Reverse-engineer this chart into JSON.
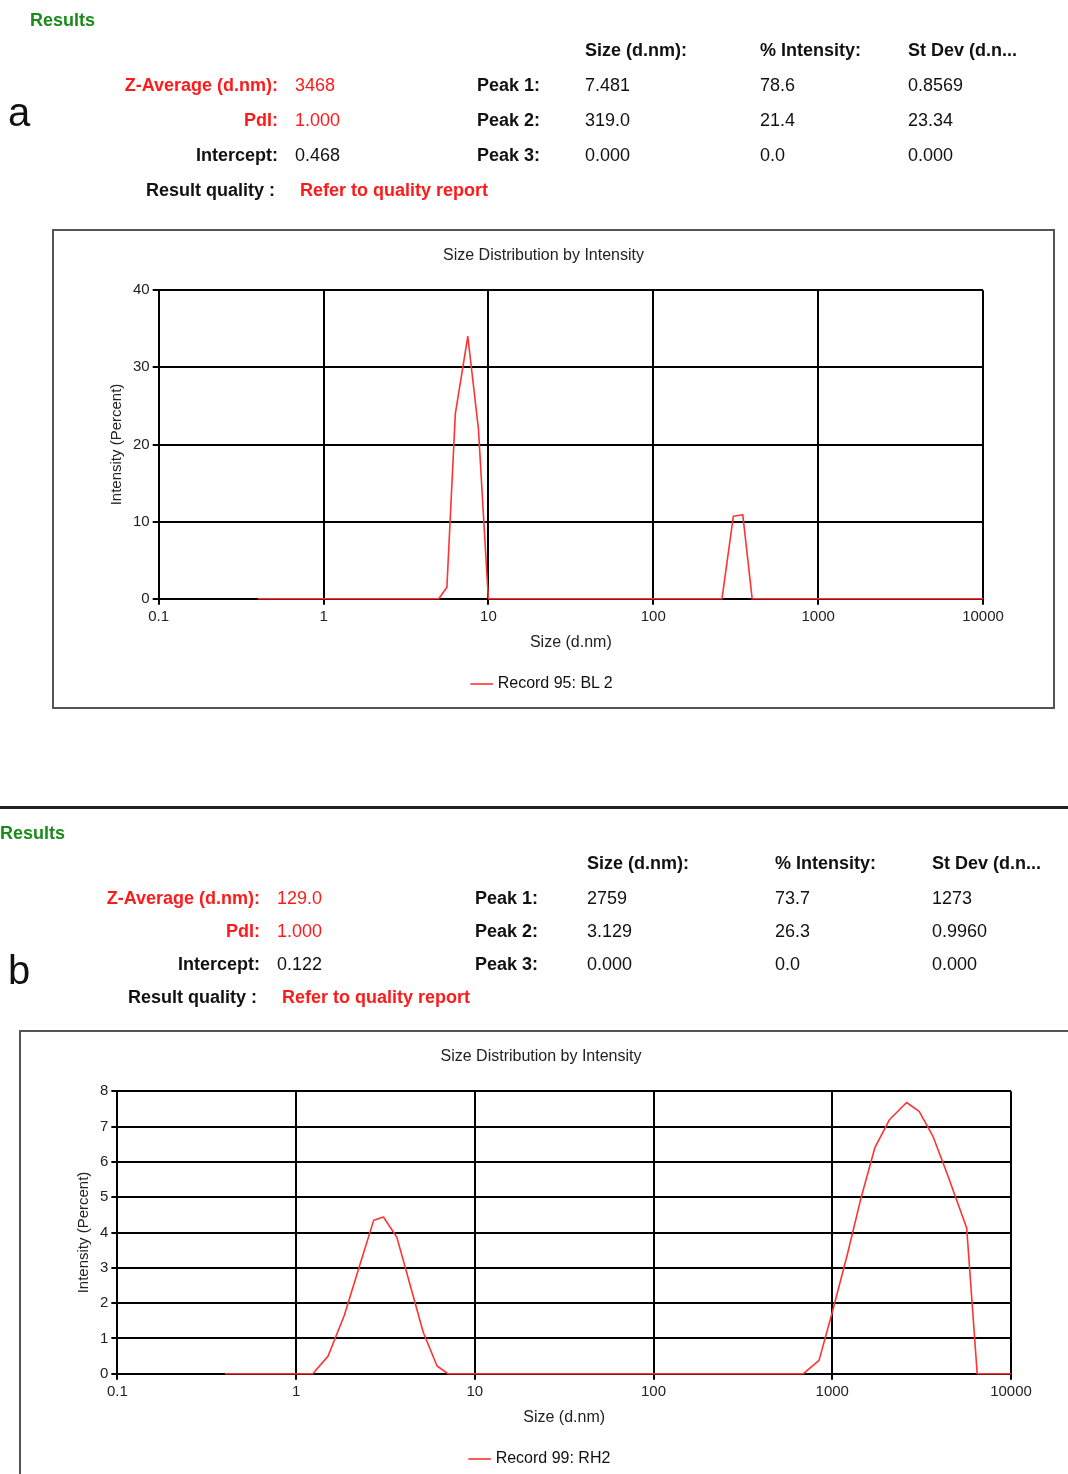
{
  "chart_data": [
    {
      "type": "other",
      "title": "Results",
      "annotations": [
        "a",
        "Size (d.nm):",
        "% Intensity:",
        "St Dev (d.n...",
        "Z-Average (d.nm):",
        "3468",
        "Peak 1:",
        "7.481",
        "78.6",
        "0.8569",
        "PdI:",
        "1.000",
        "Peak 2:",
        "319.0",
        "21.4",
        "23.34",
        "Intercept:",
        "0.468",
        "Peak 3:",
        "0.000",
        "0.0",
        "0.000",
        "Result quality :",
        "Refer to quality report"
      ]
    },
    {
      "type": "line",
      "title": "Size Distribution by Intensity",
      "xlabel": "Size (d.nm)",
      "ylabel": "Intensity (Percent)",
      "log": "x",
      "xlim": [
        0.1,
        10000
      ],
      "xticks": [
        0.1,
        1,
        10,
        100,
        1000,
        10000
      ],
      "ylim": [
        0,
        40
      ],
      "yticks": [
        0,
        10,
        20,
        30,
        40
      ],
      "grid": true,
      "legend": "bottom",
      "marker": "none",
      "line_style": "solid",
      "series": [
        {
          "name": "Record 95: BL 2",
          "color": "#ff3333",
          "x": [
            0.4,
            5,
            5.6,
            6.3,
            7.5,
            8.7,
            9.8,
            10,
            261,
            306,
            349,
            398,
            10000
          ],
          "values": [
            0,
            0,
            1.5,
            24,
            34,
            22,
            3,
            0,
            0,
            10.7,
            10.9,
            0,
            0
          ]
        }
      ]
    },
    {
      "type": "other",
      "title": "Results",
      "annotations": [
        "b",
        "Size (d.nm):",
        "% Intensity:",
        "St Dev (d.n...",
        "Z-Average (d.nm):",
        "129.0",
        "Peak 1:",
        "2759",
        "73.7",
        "1273",
        "PdI:",
        "1.000",
        "Peak 2:",
        "3.129",
        "26.3",
        "0.9960",
        "Intercept:",
        "0.122",
        "Peak 3:",
        "0.000",
        "0.0",
        "0.000",
        "Result quality :",
        "Refer to quality report"
      ]
    },
    {
      "type": "line",
      "title": "Size Distribution by Intensity",
      "xlabel": "Size (d.nm)",
      "ylabel": "Intensity (Percent)",
      "log": "x",
      "xlim": [
        0.1,
        10000
      ],
      "xticks": [
        0.1,
        1,
        10,
        100,
        1000,
        10000
      ],
      "ylim": [
        0,
        8
      ],
      "yticks": [
        0,
        1,
        2,
        3,
        4,
        5,
        6,
        7,
        8
      ],
      "grid": true,
      "legend": "bottom",
      "marker": "none",
      "line_style": "solid",
      "series": [
        {
          "name": "Record 99: RH2",
          "color": "#ff3333",
          "x": [
            0.4,
            1.24,
            1.51,
            1.86,
            2.28,
            2.72,
            3.08,
            3.66,
            4.3,
            5.15,
            6.15,
            7.1,
            687,
            843,
            1007,
            1217,
            1452,
            1731,
            2094,
            2605,
            3064,
            3654,
            4425,
            5650,
            6470,
            10000
          ],
          "values": [
            0,
            0,
            0.5,
            1.65,
            3.1,
            4.35,
            4.44,
            3.87,
            2.6,
            1.17,
            0.22,
            0,
            0,
            0.38,
            1.8,
            3.4,
            5.0,
            6.4,
            7.2,
            7.68,
            7.43,
            6.73,
            5.62,
            4.13,
            0,
            0
          ]
        }
      ]
    }
  ]
}
